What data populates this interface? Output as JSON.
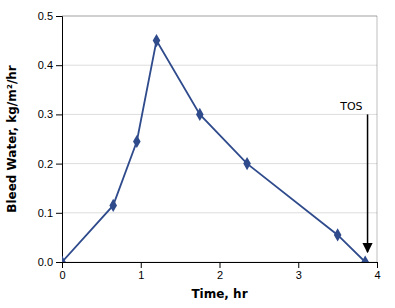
{
  "chart_data": {
    "type": "line",
    "xlabel": "Time, hr",
    "ylabel": "Bleed Water, kg/m²/hr",
    "x": [
      0,
      0.65,
      0.95,
      1.2,
      1.75,
      2.35,
      3.5,
      3.85
    ],
    "series": [
      {
        "values": [
          0.0,
          0.115,
          0.245,
          0.45,
          0.3,
          0.2,
          0.055,
          0.0
        ],
        "color": "#2F4B8C",
        "marker": "diamond"
      }
    ],
    "xlim": [
      0,
      4.0
    ],
    "ylim": [
      0.0,
      0.5
    ],
    "xticks": [
      0,
      1,
      2,
      3,
      4
    ],
    "yticks": [
      {
        "value": 0,
        "label": "0.0"
      },
      0.1,
      0.2,
      0.3,
      0.4,
      0.5
    ],
    "grid": "y",
    "annotations": [
      {
        "text": "TOS",
        "x": 3.88,
        "y_start": 0.3,
        "y_end": 0.02
      }
    ]
  }
}
